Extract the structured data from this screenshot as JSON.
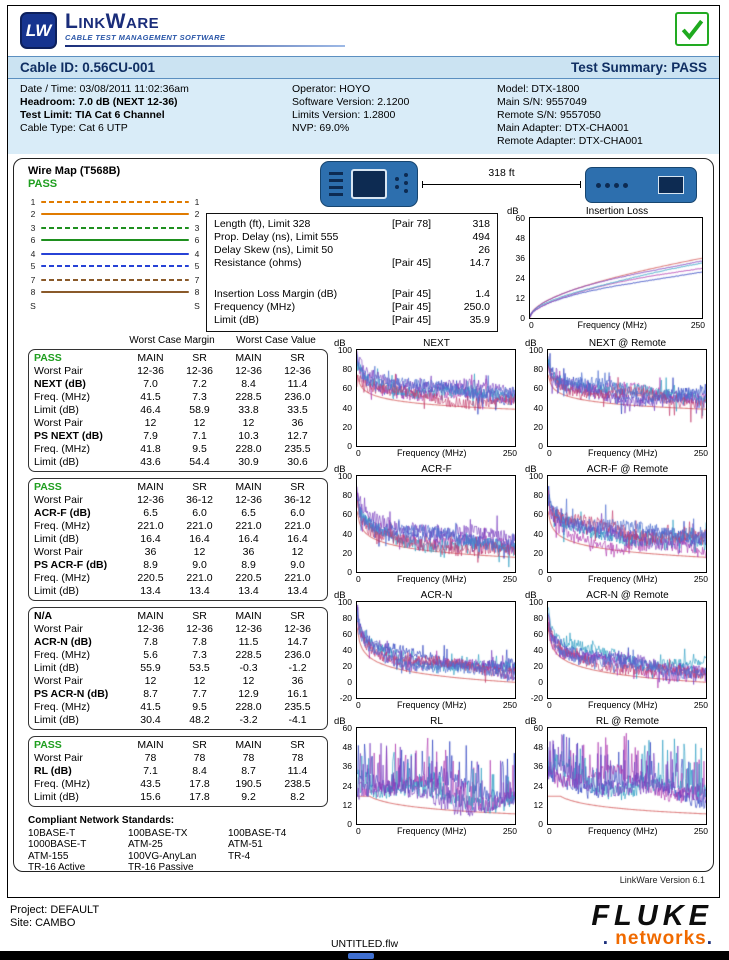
{
  "header": {
    "logo_mark": "LW",
    "brand": "LinkWare",
    "tagline": "CABLE TEST MANAGEMENT SOFTWARE"
  },
  "summary_bar": {
    "cable_id": "Cable ID: 0.56CU-001",
    "test_summary": "Test Summary: PASS"
  },
  "info": {
    "col1": [
      {
        "text": "Date / Time: 03/08/2011 11:02:36am",
        "bold": false
      },
      {
        "text": "Headroom: 7.0 dB (NEXT 12-36)",
        "bold": true
      },
      {
        "text": "Test Limit: TIA Cat 6 Channel",
        "bold": true
      },
      {
        "text": "Cable Type: Cat 6 UTP",
        "bold": false
      }
    ],
    "col2": [
      {
        "text": "Operator: HOYO",
        "bold": false
      },
      {
        "text": "Software Version: 2.1200",
        "bold": false
      },
      {
        "text": "Limits Version: 1.2800",
        "bold": false
      },
      {
        "text": "NVP: 69.0%",
        "bold": false
      }
    ],
    "col3": [
      {
        "text": "Model: DTX-1800",
        "bold": false
      },
      {
        "text": "Main S/N: 9557049",
        "bold": false
      },
      {
        "text": "Remote S/N: 9557050",
        "bold": false
      },
      {
        "text": "Main Adapter: DTX-CHA001",
        "bold": false
      },
      {
        "text": "Remote Adapter: DTX-CHA001",
        "bold": false
      }
    ]
  },
  "wiremap": {
    "title": "Wire Map (T568B)",
    "status": "PASS",
    "wires": [
      {
        "pin": "1",
        "color": "#e07b00",
        "dashed": true,
        "gap": false,
        "shield": false
      },
      {
        "pin": "2",
        "color": "#e07b00",
        "dashed": false,
        "gap": false,
        "shield": false
      },
      {
        "pin": "3",
        "color": "#1e8f1e",
        "dashed": true,
        "gap": true,
        "shield": false
      },
      {
        "pin": "6",
        "color": "#1e8f1e",
        "dashed": false,
        "gap": false,
        "shield": false
      },
      {
        "pin": "4",
        "color": "#2742d6",
        "dashed": false,
        "gap": true,
        "shield": false
      },
      {
        "pin": "5",
        "color": "#2742d6",
        "dashed": true,
        "gap": false,
        "shield": false
      },
      {
        "pin": "7",
        "color": "#8a5a2a",
        "dashed": true,
        "gap": true,
        "shield": false
      },
      {
        "pin": "8",
        "color": "#8a5a2a",
        "dashed": false,
        "gap": false,
        "shield": false
      },
      {
        "pin": "S",
        "color": "",
        "dashed": false,
        "gap": true,
        "shield": true
      }
    ]
  },
  "devices": {
    "length_label": "318 ft"
  },
  "measurements": {
    "rows": [
      {
        "label": "Length (ft), Limit 328",
        "pair": "[Pair 78]",
        "value": "318"
      },
      {
        "label": "Prop. Delay (ns), Limit 555",
        "pair": "",
        "value": "494"
      },
      {
        "label": "Delay Skew (ns), Limit 50",
        "pair": "",
        "value": "26"
      },
      {
        "label": "Resistance (ohms)",
        "pair": "[Pair 45]",
        "value": "14.7"
      },
      {
        "label": "",
        "pair": "",
        "value": ""
      },
      {
        "label": "Insertion Loss Margin (dB)",
        "pair": "[Pair 45]",
        "value": "1.4"
      },
      {
        "label": "Frequency (MHz)",
        "pair": "[Pair 45]",
        "value": "250.0"
      },
      {
        "label": "Limit (dB)",
        "pair": "[Pair 45]",
        "value": "35.9"
      }
    ]
  },
  "tables_header": {
    "margin": "Worst Case Margin",
    "value": "Worst Case Value"
  },
  "result_tables": [
    {
      "status": "PASS",
      "columns": [
        "MAIN",
        "SR",
        "MAIN",
        "SR"
      ],
      "rows": [
        {
          "label": "Worst Pair",
          "bold": false,
          "values": [
            "12-36",
            "12-36",
            "12-36",
            "12-36"
          ]
        },
        {
          "label": "NEXT (dB)",
          "bold": true,
          "values": [
            "7.0",
            "7.2",
            "8.4",
            "11.4"
          ]
        },
        {
          "label": "Freq. (MHz)",
          "bold": false,
          "values": [
            "41.5",
            "7.3",
            "228.5",
            "236.0"
          ]
        },
        {
          "label": "Limit (dB)",
          "bold": false,
          "values": [
            "46.4",
            "58.9",
            "33.8",
            "33.5"
          ]
        },
        {
          "label": "Worst Pair",
          "bold": false,
          "values": [
            "12",
            "12",
            "12",
            "36"
          ]
        },
        {
          "label": "PS NEXT (dB)",
          "bold": true,
          "values": [
            "7.9",
            "7.1",
            "10.3",
            "12.7"
          ]
        },
        {
          "label": "Freq. (MHz)",
          "bold": false,
          "values": [
            "41.8",
            "9.5",
            "228.0",
            "235.5"
          ]
        },
        {
          "label": "Limit (dB)",
          "bold": false,
          "values": [
            "43.6",
            "54.4",
            "30.9",
            "30.6"
          ]
        }
      ]
    },
    {
      "status": "PASS",
      "columns": [
        "MAIN",
        "SR",
        "MAIN",
        "SR"
      ],
      "rows": [
        {
          "label": "Worst Pair",
          "bold": false,
          "values": [
            "12-36",
            "36-12",
            "12-36",
            "36-12"
          ]
        },
        {
          "label": "ACR-F (dB)",
          "bold": true,
          "values": [
            "6.5",
            "6.0",
            "6.5",
            "6.0"
          ]
        },
        {
          "label": "Freq. (MHz)",
          "bold": false,
          "values": [
            "221.0",
            "221.0",
            "221.0",
            "221.0"
          ]
        },
        {
          "label": "Limit (dB)",
          "bold": false,
          "values": [
            "16.4",
            "16.4",
            "16.4",
            "16.4"
          ]
        },
        {
          "label": "Worst Pair",
          "bold": false,
          "values": [
            "36",
            "12",
            "36",
            "12"
          ]
        },
        {
          "label": "PS ACR-F (dB)",
          "bold": true,
          "values": [
            "8.9",
            "9.0",
            "8.9",
            "9.0"
          ]
        },
        {
          "label": "Freq. (MHz)",
          "bold": false,
          "values": [
            "220.5",
            "221.0",
            "220.5",
            "221.0"
          ]
        },
        {
          "label": "Limit (dB)",
          "bold": false,
          "values": [
            "13.4",
            "13.4",
            "13.4",
            "13.4"
          ]
        }
      ]
    },
    {
      "status": "N/A",
      "columns": [
        "MAIN",
        "SR",
        "MAIN",
        "SR"
      ],
      "rows": [
        {
          "label": "Worst Pair",
          "bold": false,
          "values": [
            "12-36",
            "12-36",
            "12-36",
            "12-36"
          ]
        },
        {
          "label": "ACR-N (dB)",
          "bold": true,
          "values": [
            "7.8",
            "7.8",
            "11.5",
            "14.7"
          ]
        },
        {
          "label": "Freq. (MHz)",
          "bold": false,
          "values": [
            "5.6",
            "7.3",
            "228.5",
            "236.0"
          ]
        },
        {
          "label": "Limit (dB)",
          "bold": false,
          "values": [
            "55.9",
            "53.5",
            "-0.3",
            "-1.2"
          ]
        },
        {
          "label": "Worst Pair",
          "bold": false,
          "values": [
            "12",
            "12",
            "12",
            "36"
          ]
        },
        {
          "label": "PS ACR-N (dB)",
          "bold": true,
          "values": [
            "8.7",
            "7.7",
            "12.9",
            "16.1"
          ]
        },
        {
          "label": "Freq. (MHz)",
          "bold": false,
          "values": [
            "41.5",
            "9.5",
            "228.0",
            "235.5"
          ]
        },
        {
          "label": "Limit (dB)",
          "bold": false,
          "values": [
            "30.4",
            "48.2",
            "-3.2",
            "-4.1"
          ]
        }
      ]
    },
    {
      "status": "PASS",
      "columns": [
        "MAIN",
        "SR",
        "MAIN",
        "SR"
      ],
      "rows": [
        {
          "label": "Worst Pair",
          "bold": false,
          "values": [
            "78",
            "78",
            "78",
            "78"
          ]
        },
        {
          "label": "RL (dB)",
          "bold": true,
          "values": [
            "7.1",
            "8.4",
            "8.7",
            "11.4"
          ]
        },
        {
          "label": "Freq. (MHz)",
          "bold": false,
          "values": [
            "43.5",
            "17.8",
            "190.5",
            "238.5"
          ]
        },
        {
          "label": "Limit (dB)",
          "bold": false,
          "values": [
            "15.6",
            "17.8",
            "9.2",
            "8.2"
          ]
        }
      ]
    }
  ],
  "standards": {
    "title": "Compliant Network Standards:",
    "columns": [
      [
        "10BASE-T",
        "1000BASE-T",
        "ATM-155",
        "TR-16 Active"
      ],
      [
        "100BASE-TX",
        "ATM-25",
        "100VG-AnyLan",
        "TR-16 Passive"
      ],
      [
        "100BASE-T4",
        "ATM-51",
        "TR-4"
      ]
    ]
  },
  "chart_style": {
    "palette": [
      "#2b3fbf",
      "#b03ab0",
      "#2f9fc4",
      "#7a3fbf",
      "#c43f6f",
      "#4f6fd0"
    ],
    "limit_color": "#e08585"
  },
  "chart_data": [
    {
      "id": "insertion-loss",
      "slot": "il",
      "type": "line",
      "title": "Insertion Loss",
      "ylabel": "dB",
      "xlabel": "Frequency (MHz)",
      "xticks": [
        "0",
        "250"
      ],
      "yticks": [
        60,
        48,
        36,
        24,
        12,
        0
      ],
      "ylim": [
        0,
        60
      ],
      "xlim": [
        0,
        250
      ],
      "seed": 7,
      "traces": 4,
      "profile": "il",
      "limit": {
        "type": "il",
        "k": 2.0,
        "m": 0.017
      },
      "band": {
        "noise": 0.3,
        "off_min": 0,
        "off_max": 0,
        "spike_p": 0,
        "spike": 0,
        "up_only": false
      },
      "canvas": {
        "w": 172,
        "h": 100
      },
      "key_values": {
        "limit_db_at_250": 35.9,
        "worst_margin_db": 1.4
      }
    },
    {
      "id": "next-main",
      "slot": "grid",
      "type": "line",
      "title": "NEXT",
      "ylabel": "dB",
      "xlabel": "Frequency (MHz)",
      "xticks": [
        "0",
        "250"
      ],
      "yticks": [
        100,
        80,
        60,
        40,
        20,
        0
      ],
      "ylim": [
        0,
        100
      ],
      "xlim": [
        0,
        250
      ],
      "seed": 11,
      "traces": 6,
      "profile": "noisy",
      "limit": {
        "type": "log",
        "a": 74.3,
        "b": 15
      },
      "band": {
        "noise": 6,
        "off_min": 6,
        "off_max": 22,
        "spike_p": 0.08,
        "spike": 15,
        "up_only": false
      },
      "canvas": {
        "w": 158,
        "h": 96
      },
      "key_values": {
        "worst_margin_db": 7.0
      }
    },
    {
      "id": "next-remote",
      "slot": "grid",
      "type": "line",
      "title": "NEXT @ Remote",
      "ylabel": "dB",
      "xlabel": "Frequency (MHz)",
      "xticks": [
        "0",
        "250"
      ],
      "yticks": [
        100,
        80,
        60,
        40,
        20,
        0
      ],
      "ylim": [
        0,
        100
      ],
      "xlim": [
        0,
        250
      ],
      "seed": 12,
      "traces": 6,
      "profile": "noisy",
      "limit": {
        "type": "log",
        "a": 74.3,
        "b": 15
      },
      "band": {
        "noise": 6,
        "off_min": 7,
        "off_max": 24,
        "spike_p": 0.08,
        "spike": 15,
        "up_only": false
      },
      "canvas": {
        "w": 158,
        "h": 96
      },
      "key_values": {
        "worst_margin_db": 7.2
      }
    },
    {
      "id": "acrf-main",
      "slot": "grid",
      "type": "line",
      "title": "ACR-F",
      "ylabel": "dB",
      "xlabel": "Frequency (MHz)",
      "xticks": [
        "0",
        "250"
      ],
      "yticks": [
        100,
        80,
        60,
        40,
        20,
        0
      ],
      "ylim": [
        0,
        100
      ],
      "xlim": [
        0,
        250
      ],
      "seed": 21,
      "traces": 6,
      "profile": "noisy",
      "limit": {
        "type": "log",
        "a": 63.3,
        "b": 20
      },
      "band": {
        "noise": 7,
        "off_min": 5,
        "off_max": 24,
        "spike_p": 0.09,
        "spike": 16,
        "up_only": false
      },
      "canvas": {
        "w": 158,
        "h": 96
      },
      "key_values": {
        "worst_margin_db": 6.5
      }
    },
    {
      "id": "acrf-remote",
      "slot": "grid",
      "type": "line",
      "title": "ACR-F @ Remote",
      "ylabel": "dB",
      "xlabel": "Frequency (MHz)",
      "xticks": [
        "0",
        "250"
      ],
      "yticks": [
        100,
        80,
        60,
        40,
        20,
        0
      ],
      "ylim": [
        0,
        100
      ],
      "xlim": [
        0,
        250
      ],
      "seed": 22,
      "traces": 6,
      "profile": "noisy",
      "limit": {
        "type": "log",
        "a": 63.3,
        "b": 20
      },
      "band": {
        "noise": 7,
        "off_min": 6,
        "off_max": 26,
        "spike_p": 0.09,
        "spike": 16,
        "up_only": false
      },
      "canvas": {
        "w": 158,
        "h": 96
      },
      "key_values": {
        "worst_margin_db": 6.0
      }
    },
    {
      "id": "acrn-main",
      "slot": "grid",
      "type": "line",
      "title": "ACR-N",
      "ylabel": "dB",
      "xlabel": "Frequency (MHz)",
      "xticks": [
        "0",
        "250"
      ],
      "yticks": [
        100,
        80,
        60,
        40,
        20,
        0,
        -20
      ],
      "ylim": [
        -20,
        100
      ],
      "xlim": [
        0,
        250
      ],
      "seed": 31,
      "traces": 6,
      "profile": "noisy",
      "limit": {
        "type": "log",
        "a": 68,
        "b": 28.5
      },
      "band": {
        "noise": 7,
        "off_min": 8,
        "off_max": 26,
        "spike_p": 0.08,
        "spike": 15,
        "up_only": false
      },
      "canvas": {
        "w": 158,
        "h": 96
      },
      "key_values": {
        "worst_margin_db": 7.8
      }
    },
    {
      "id": "acrn-remote",
      "slot": "grid",
      "type": "line",
      "title": "ACR-N @ Remote",
      "ylabel": "dB",
      "xlabel": "Frequency (MHz)",
      "xticks": [
        "0",
        "250"
      ],
      "yticks": [
        100,
        80,
        60,
        40,
        20,
        0,
        -20
      ],
      "ylim": [
        -20,
        100
      ],
      "xlim": [
        0,
        250
      ],
      "seed": 32,
      "traces": 6,
      "profile": "noisy",
      "limit": {
        "type": "log",
        "a": 68,
        "b": 28.5
      },
      "band": {
        "noise": 7,
        "off_min": 9,
        "off_max": 28,
        "spike_p": 0.08,
        "spike": 15,
        "up_only": false
      },
      "canvas": {
        "w": 158,
        "h": 96
      },
      "key_values": {
        "worst_margin_db": 7.8
      }
    },
    {
      "id": "rl-main",
      "slot": "grid",
      "type": "line",
      "title": "RL",
      "ylabel": "dB",
      "xlabel": "Frequency (MHz)",
      "xticks": [
        "0",
        "250"
      ],
      "yticks": [
        60,
        48,
        36,
        24,
        12,
        0
      ],
      "ylim": [
        0,
        60
      ],
      "xlim": [
        0,
        250
      ],
      "seed": 41,
      "traces": 4,
      "profile": "noisy",
      "limit": {
        "type": "rl",
        "a": 17.3,
        "b": 10
      },
      "band": {
        "noise": 5,
        "off_min": 6,
        "off_max": 16,
        "spike_p": 0.2,
        "spike": 26,
        "up_only": true
      },
      "canvas": {
        "w": 158,
        "h": 96
      },
      "key_values": {
        "worst_margin_db": 7.1
      }
    },
    {
      "id": "rl-remote",
      "slot": "grid",
      "type": "line",
      "title": "RL @ Remote",
      "ylabel": "dB",
      "xlabel": "Frequency (MHz)",
      "xticks": [
        "0",
        "250"
      ],
      "yticks": [
        60,
        48,
        36,
        24,
        12,
        0
      ],
      "ylim": [
        0,
        60
      ],
      "xlim": [
        0,
        250
      ],
      "seed": 42,
      "traces": 4,
      "profile": "noisy",
      "limit": {
        "type": "rl",
        "a": 17.3,
        "b": 10
      },
      "band": {
        "noise": 5,
        "off_min": 7,
        "off_max": 18,
        "spike_p": 0.2,
        "spike": 26,
        "up_only": true
      },
      "canvas": {
        "w": 158,
        "h": 96
      },
      "key_values": {
        "worst_margin_db": 8.4
      }
    }
  ],
  "footer": {
    "version": "LinkWare Version  6.1",
    "project": "Project: DEFAULT",
    "site": "Site: CAMBO",
    "fluke": "FLUKE",
    "networks": "networks",
    "filename": "UNTITLED.flw"
  }
}
